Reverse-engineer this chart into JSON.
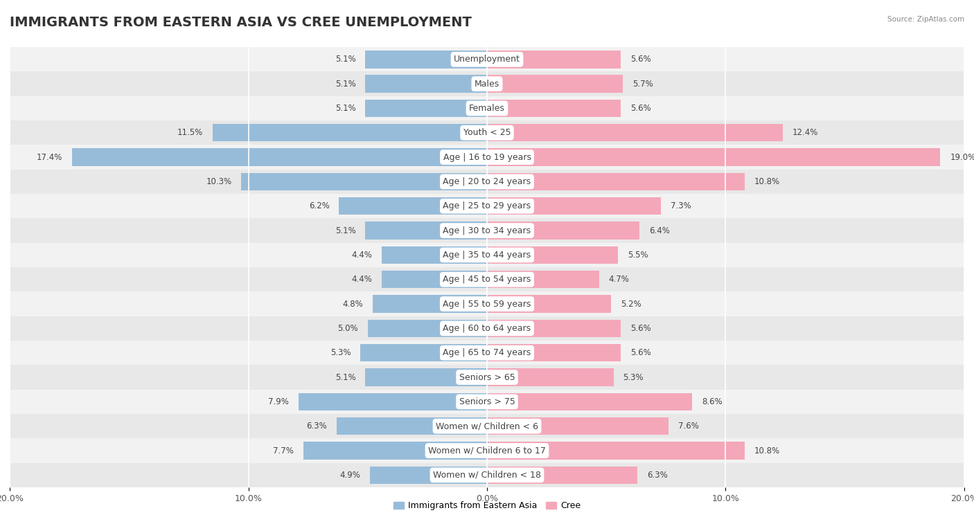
{
  "title": "IMMIGRANTS FROM EASTERN ASIA VS CREE UNEMPLOYMENT",
  "source": "Source: ZipAtlas.com",
  "categories": [
    "Unemployment",
    "Males",
    "Females",
    "Youth < 25",
    "Age | 16 to 19 years",
    "Age | 20 to 24 years",
    "Age | 25 to 29 years",
    "Age | 30 to 34 years",
    "Age | 35 to 44 years",
    "Age | 45 to 54 years",
    "Age | 55 to 59 years",
    "Age | 60 to 64 years",
    "Age | 65 to 74 years",
    "Seniors > 65",
    "Seniors > 75",
    "Women w/ Children < 6",
    "Women w/ Children 6 to 17",
    "Women w/ Children < 18"
  ],
  "left_values": [
    5.1,
    5.1,
    5.1,
    11.5,
    17.4,
    10.3,
    6.2,
    5.1,
    4.4,
    4.4,
    4.8,
    5.0,
    5.3,
    5.1,
    7.9,
    6.3,
    7.7,
    4.9
  ],
  "right_values": [
    5.6,
    5.7,
    5.6,
    12.4,
    19.0,
    10.8,
    7.3,
    6.4,
    5.5,
    4.7,
    5.2,
    5.6,
    5.6,
    5.3,
    8.6,
    7.6,
    10.8,
    6.3
  ],
  "left_color": "#97bcd9",
  "right_color": "#f4a7b9",
  "axis_max": 20.0,
  "bar_height": 0.72,
  "background_color": "#ffffff",
  "row_colors": [
    "#f2f2f2",
    "#e8e8e8"
  ],
  "legend_left_label": "Immigrants from Eastern Asia",
  "legend_right_label": "Cree",
  "title_fontsize": 14,
  "label_fontsize": 9,
  "value_fontsize": 8.5,
  "tick_fontsize": 9
}
